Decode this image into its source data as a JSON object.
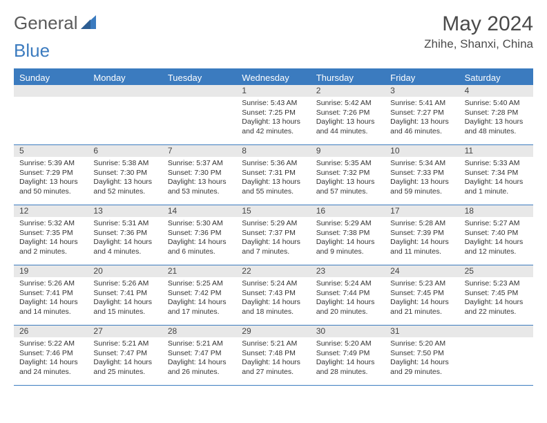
{
  "logo": {
    "text1": "General",
    "text2": "Blue"
  },
  "title": "May 2024",
  "location": "Zhihe, Shanxi, China",
  "colors": {
    "accent": "#3b7bbf",
    "header_text": "#ffffff",
    "daynum_bg": "#e8e8e8",
    "text": "#333333",
    "title_text": "#4a4a4a"
  },
  "day_names": [
    "Sunday",
    "Monday",
    "Tuesday",
    "Wednesday",
    "Thursday",
    "Friday",
    "Saturday"
  ],
  "weeks": [
    [
      {
        "n": "",
        "sunrise": "",
        "sunset": "",
        "daylight": ""
      },
      {
        "n": "",
        "sunrise": "",
        "sunset": "",
        "daylight": ""
      },
      {
        "n": "",
        "sunrise": "",
        "sunset": "",
        "daylight": ""
      },
      {
        "n": "1",
        "sunrise": "Sunrise: 5:43 AM",
        "sunset": "Sunset: 7:25 PM",
        "daylight": "Daylight: 13 hours and 42 minutes."
      },
      {
        "n": "2",
        "sunrise": "Sunrise: 5:42 AM",
        "sunset": "Sunset: 7:26 PM",
        "daylight": "Daylight: 13 hours and 44 minutes."
      },
      {
        "n": "3",
        "sunrise": "Sunrise: 5:41 AM",
        "sunset": "Sunset: 7:27 PM",
        "daylight": "Daylight: 13 hours and 46 minutes."
      },
      {
        "n": "4",
        "sunrise": "Sunrise: 5:40 AM",
        "sunset": "Sunset: 7:28 PM",
        "daylight": "Daylight: 13 hours and 48 minutes."
      }
    ],
    [
      {
        "n": "5",
        "sunrise": "Sunrise: 5:39 AM",
        "sunset": "Sunset: 7:29 PM",
        "daylight": "Daylight: 13 hours and 50 minutes."
      },
      {
        "n": "6",
        "sunrise": "Sunrise: 5:38 AM",
        "sunset": "Sunset: 7:30 PM",
        "daylight": "Daylight: 13 hours and 52 minutes."
      },
      {
        "n": "7",
        "sunrise": "Sunrise: 5:37 AM",
        "sunset": "Sunset: 7:30 PM",
        "daylight": "Daylight: 13 hours and 53 minutes."
      },
      {
        "n": "8",
        "sunrise": "Sunrise: 5:36 AM",
        "sunset": "Sunset: 7:31 PM",
        "daylight": "Daylight: 13 hours and 55 minutes."
      },
      {
        "n": "9",
        "sunrise": "Sunrise: 5:35 AM",
        "sunset": "Sunset: 7:32 PM",
        "daylight": "Daylight: 13 hours and 57 minutes."
      },
      {
        "n": "10",
        "sunrise": "Sunrise: 5:34 AM",
        "sunset": "Sunset: 7:33 PM",
        "daylight": "Daylight: 13 hours and 59 minutes."
      },
      {
        "n": "11",
        "sunrise": "Sunrise: 5:33 AM",
        "sunset": "Sunset: 7:34 PM",
        "daylight": "Daylight: 14 hours and 1 minute."
      }
    ],
    [
      {
        "n": "12",
        "sunrise": "Sunrise: 5:32 AM",
        "sunset": "Sunset: 7:35 PM",
        "daylight": "Daylight: 14 hours and 2 minutes."
      },
      {
        "n": "13",
        "sunrise": "Sunrise: 5:31 AM",
        "sunset": "Sunset: 7:36 PM",
        "daylight": "Daylight: 14 hours and 4 minutes."
      },
      {
        "n": "14",
        "sunrise": "Sunrise: 5:30 AM",
        "sunset": "Sunset: 7:36 PM",
        "daylight": "Daylight: 14 hours and 6 minutes."
      },
      {
        "n": "15",
        "sunrise": "Sunrise: 5:29 AM",
        "sunset": "Sunset: 7:37 PM",
        "daylight": "Daylight: 14 hours and 7 minutes."
      },
      {
        "n": "16",
        "sunrise": "Sunrise: 5:29 AM",
        "sunset": "Sunset: 7:38 PM",
        "daylight": "Daylight: 14 hours and 9 minutes."
      },
      {
        "n": "17",
        "sunrise": "Sunrise: 5:28 AM",
        "sunset": "Sunset: 7:39 PM",
        "daylight": "Daylight: 14 hours and 11 minutes."
      },
      {
        "n": "18",
        "sunrise": "Sunrise: 5:27 AM",
        "sunset": "Sunset: 7:40 PM",
        "daylight": "Daylight: 14 hours and 12 minutes."
      }
    ],
    [
      {
        "n": "19",
        "sunrise": "Sunrise: 5:26 AM",
        "sunset": "Sunset: 7:41 PM",
        "daylight": "Daylight: 14 hours and 14 minutes."
      },
      {
        "n": "20",
        "sunrise": "Sunrise: 5:26 AM",
        "sunset": "Sunset: 7:41 PM",
        "daylight": "Daylight: 14 hours and 15 minutes."
      },
      {
        "n": "21",
        "sunrise": "Sunrise: 5:25 AM",
        "sunset": "Sunset: 7:42 PM",
        "daylight": "Daylight: 14 hours and 17 minutes."
      },
      {
        "n": "22",
        "sunrise": "Sunrise: 5:24 AM",
        "sunset": "Sunset: 7:43 PM",
        "daylight": "Daylight: 14 hours and 18 minutes."
      },
      {
        "n": "23",
        "sunrise": "Sunrise: 5:24 AM",
        "sunset": "Sunset: 7:44 PM",
        "daylight": "Daylight: 14 hours and 20 minutes."
      },
      {
        "n": "24",
        "sunrise": "Sunrise: 5:23 AM",
        "sunset": "Sunset: 7:45 PM",
        "daylight": "Daylight: 14 hours and 21 minutes."
      },
      {
        "n": "25",
        "sunrise": "Sunrise: 5:23 AM",
        "sunset": "Sunset: 7:45 PM",
        "daylight": "Daylight: 14 hours and 22 minutes."
      }
    ],
    [
      {
        "n": "26",
        "sunrise": "Sunrise: 5:22 AM",
        "sunset": "Sunset: 7:46 PM",
        "daylight": "Daylight: 14 hours and 24 minutes."
      },
      {
        "n": "27",
        "sunrise": "Sunrise: 5:21 AM",
        "sunset": "Sunset: 7:47 PM",
        "daylight": "Daylight: 14 hours and 25 minutes."
      },
      {
        "n": "28",
        "sunrise": "Sunrise: 5:21 AM",
        "sunset": "Sunset: 7:47 PM",
        "daylight": "Daylight: 14 hours and 26 minutes."
      },
      {
        "n": "29",
        "sunrise": "Sunrise: 5:21 AM",
        "sunset": "Sunset: 7:48 PM",
        "daylight": "Daylight: 14 hours and 27 minutes."
      },
      {
        "n": "30",
        "sunrise": "Sunrise: 5:20 AM",
        "sunset": "Sunset: 7:49 PM",
        "daylight": "Daylight: 14 hours and 28 minutes."
      },
      {
        "n": "31",
        "sunrise": "Sunrise: 5:20 AM",
        "sunset": "Sunset: 7:50 PM",
        "daylight": "Daylight: 14 hours and 29 minutes."
      },
      {
        "n": "",
        "sunrise": "",
        "sunset": "",
        "daylight": ""
      }
    ]
  ]
}
